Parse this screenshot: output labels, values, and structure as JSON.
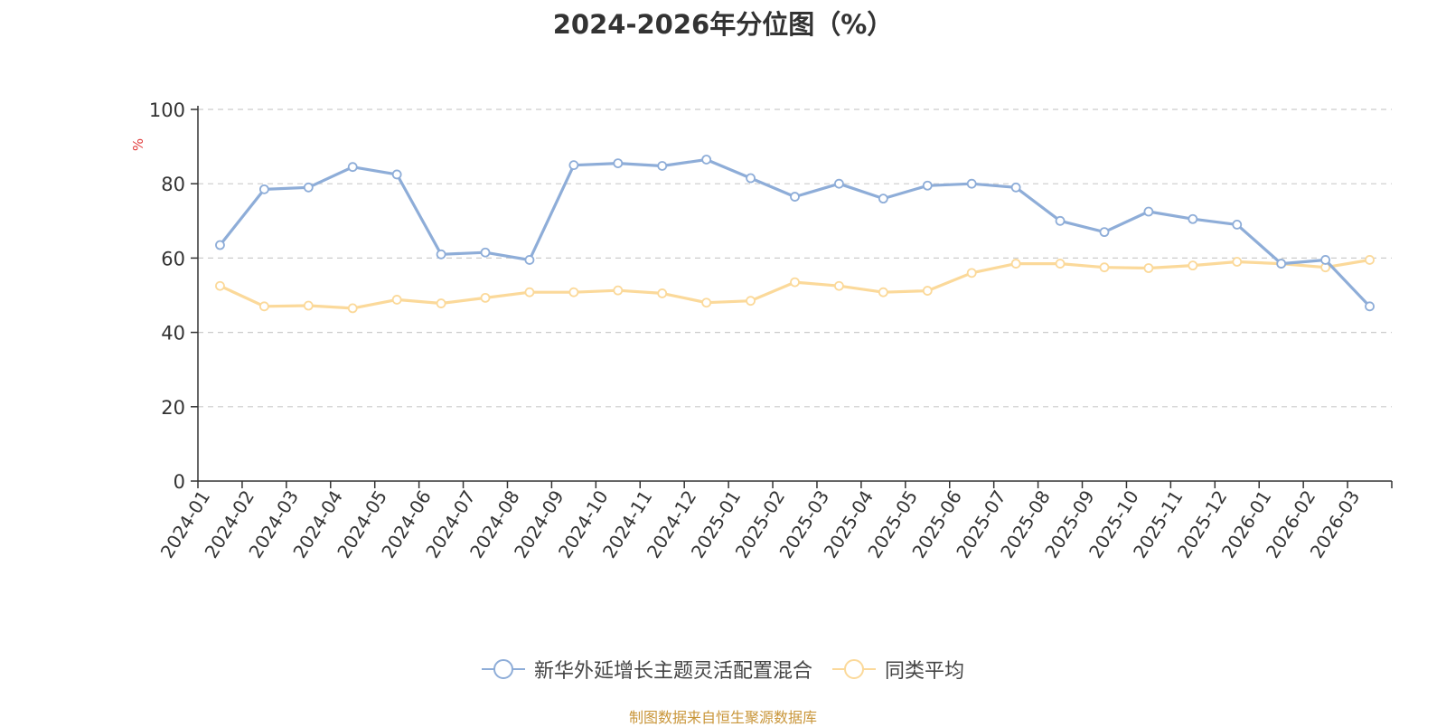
{
  "chart_data": {
    "type": "line",
    "title": "2024-2026年分位图（%）",
    "ylabel": "%",
    "ylim": [
      0,
      100
    ],
    "yticks": [
      0,
      20,
      40,
      60,
      80,
      100
    ],
    "grid": true,
    "legend_position": "bottom",
    "categories": [
      "2024-01",
      "2024-02",
      "2024-03",
      "2024-04",
      "2024-05",
      "2024-06",
      "2024-07",
      "2024-08",
      "2024-09",
      "2024-10",
      "2024-11",
      "2024-12",
      "2025-01",
      "2025-02",
      "2025-03",
      "2025-04",
      "2025-05",
      "2025-06",
      "2025-07",
      "2025-08",
      "2025-09",
      "2025-10",
      "2025-11",
      "2025-12",
      "2026-01",
      "2026-02",
      "2026-03"
    ],
    "series": [
      {
        "name": "新华外延增长主题灵活配置混合",
        "color": "#8eadd8",
        "values": [
          63.5,
          78.5,
          79.0,
          84.5,
          82.5,
          61.0,
          61.5,
          59.5,
          85.0,
          85.5,
          84.8,
          86.5,
          81.5,
          76.5,
          80.0,
          76.0,
          79.5,
          80.0,
          79.0,
          70.0,
          67.0,
          72.5,
          70.5,
          69.0,
          58.5,
          59.5,
          47.0
        ]
      },
      {
        "name": "同类平均",
        "color": "#fbd99a",
        "values": [
          52.5,
          47.0,
          47.2,
          46.5,
          48.8,
          47.8,
          49.3,
          50.8,
          50.8,
          51.3,
          50.5,
          48.0,
          48.5,
          53.5,
          52.5,
          50.8,
          51.2,
          56.0,
          58.5,
          58.5,
          57.5,
          57.3,
          58.0,
          59.0,
          58.5,
          57.5,
          59.5
        ]
      }
    ]
  },
  "source_text": "制图数据来自恒生聚源数据库"
}
